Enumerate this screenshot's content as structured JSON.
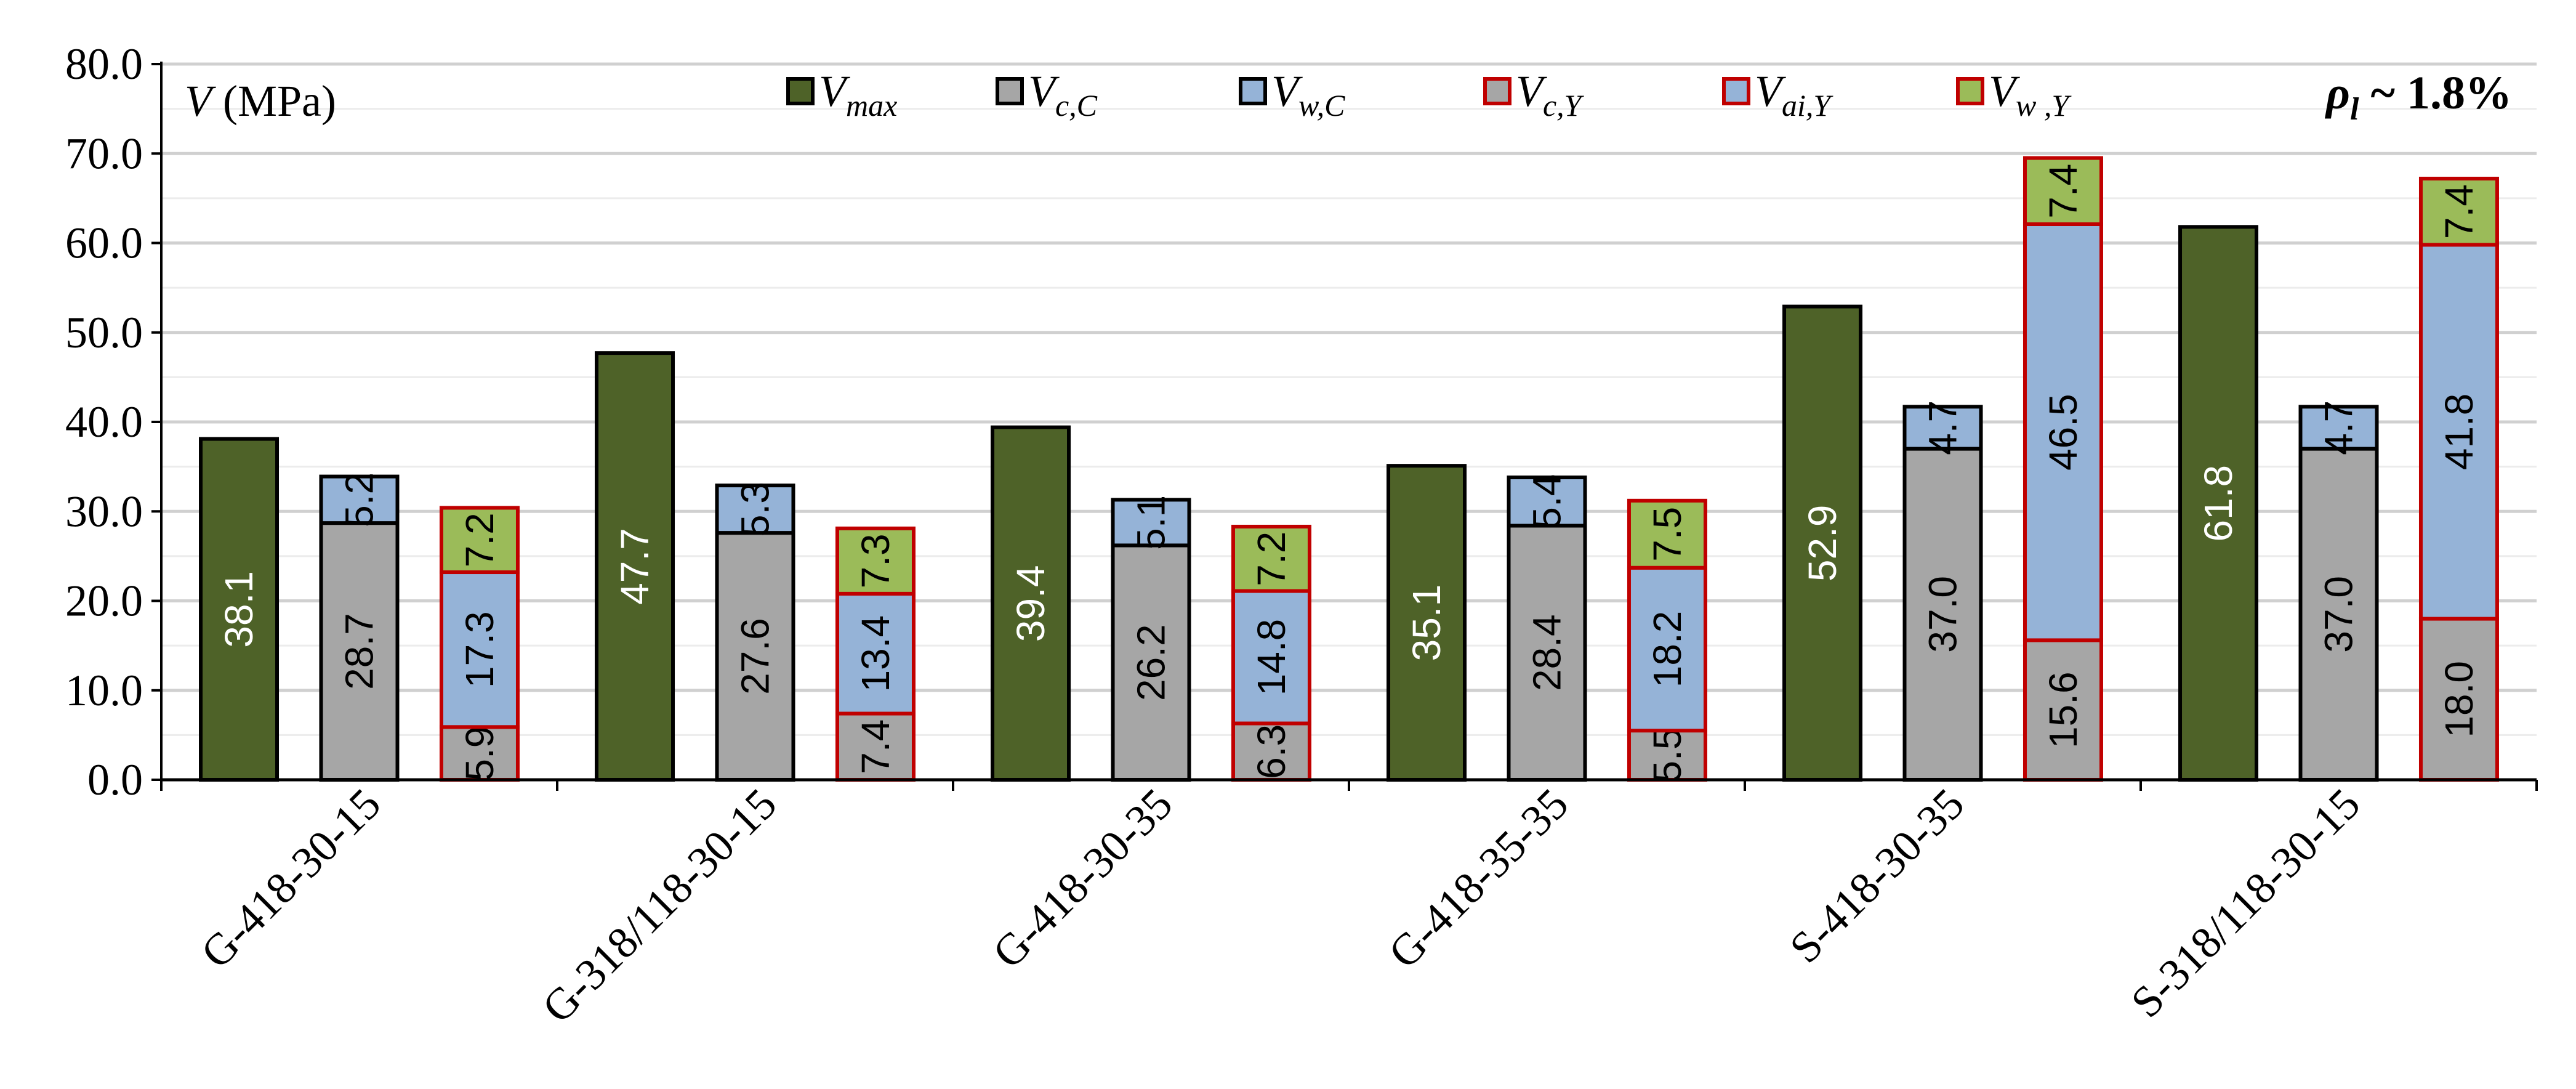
{
  "chart_data": {
    "type": "bar",
    "y_axis_title_symbol": "V",
    "y_axis_title_unit": " (MPa)",
    "annotation": {
      "symbol": "ρ",
      "subscript": "l",
      "text": " ~ 1.8%"
    },
    "ylim": [
      0,
      80
    ],
    "yticks": [
      0,
      10,
      20,
      30,
      40,
      50,
      60,
      70,
      80
    ],
    "ytick_labels": [
      "0.0",
      "10.0",
      "20.0",
      "30.0",
      "40.0",
      "50.0",
      "60.0",
      "70.0",
      "80.0"
    ],
    "grid": true,
    "legend_position": "top",
    "legend": [
      {
        "key": "vmax",
        "base": "V",
        "sub": "max",
        "fill": "#4e6228",
        "stroke": "#000000"
      },
      {
        "key": "vcc",
        "base": "V",
        "sub": "c,C",
        "fill": "#a6a6a6",
        "stroke": "#000000"
      },
      {
        "key": "vwc",
        "base": "V",
        "sub": "w,C",
        "fill": "#95b3d7",
        "stroke": "#000000"
      },
      {
        "key": "vcy",
        "base": "V",
        "sub": "c,Y",
        "fill": "#a6a6a6",
        "stroke": "#c00000"
      },
      {
        "key": "vaiy",
        "base": "V",
        "sub": "ai,Y",
        "fill": "#95b3d7",
        "stroke": "#c00000"
      },
      {
        "key": "vwy",
        "base": "V",
        "sub": "w ,Y",
        "fill": "#9bbb59",
        "stroke": "#c00000"
      }
    ],
    "categories": [
      "G-418-30-15",
      "G-318/118-30-15",
      "G-418-30-35",
      "G-418-35-35",
      "S-418-30-35",
      "S-318/118-30-15"
    ],
    "series": [
      {
        "name": "V_max",
        "stack": "max",
        "fill": "#4e6228",
        "stroke": "#000000",
        "label_color": "#ffffff",
        "values": [
          38.1,
          47.7,
          39.4,
          35.1,
          52.9,
          61.8
        ]
      },
      {
        "name": "V_c,C",
        "stack": "code",
        "fill": "#a6a6a6",
        "stroke": "#000000",
        "label_color": "#000000",
        "values": [
          28.7,
          27.6,
          26.2,
          28.4,
          37.0,
          37.0
        ]
      },
      {
        "name": "V_w,C",
        "stack": "code",
        "fill": "#95b3d7",
        "stroke": "#000000",
        "label_color": "#000000",
        "values": [
          5.2,
          5.3,
          5.1,
          5.4,
          4.7,
          4.7
        ]
      },
      {
        "name": "V_c,Y",
        "stack": "yang",
        "fill": "#a6a6a6",
        "stroke": "#c00000",
        "label_color": "#000000",
        "values": [
          5.9,
          7.4,
          6.3,
          5.5,
          15.6,
          18.0
        ]
      },
      {
        "name": "V_ai,Y",
        "stack": "yang",
        "fill": "#95b3d7",
        "stroke": "#c00000",
        "label_color": "#000000",
        "values": [
          17.3,
          13.4,
          14.8,
          18.2,
          46.5,
          41.8
        ]
      },
      {
        "name": "V_w,Y",
        "stack": "yang",
        "fill": "#9bbb59",
        "stroke": "#c00000",
        "label_color": "#000000",
        "values": [
          7.2,
          7.3,
          7.2,
          7.5,
          7.4,
          7.4
        ]
      }
    ]
  }
}
